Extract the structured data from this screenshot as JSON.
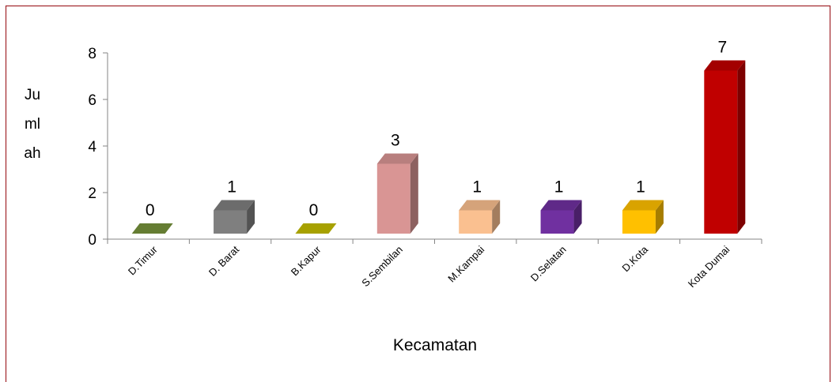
{
  "chart_data": {
    "type": "bar3d",
    "categories": [
      "D.Timur",
      "D. Barat",
      "B.Kapur",
      "S.Sembilan",
      "M.Kampai",
      "D.Selatan",
      "D.Kota",
      "Kota Dumai"
    ],
    "values": [
      0,
      1,
      0,
      3,
      1,
      1,
      1,
      7
    ],
    "colors": [
      "#77933c",
      "#7f7f7f",
      "#c4bd00",
      "#d99594",
      "#fac090",
      "#7030a0",
      "#ffc000",
      "#c00000"
    ],
    "ylim": [
      0,
      8
    ],
    "yticks": [
      0,
      2,
      4,
      6,
      8
    ],
    "y_label": "Jumlah",
    "x_label": "Kecamatan",
    "grid": false
  }
}
